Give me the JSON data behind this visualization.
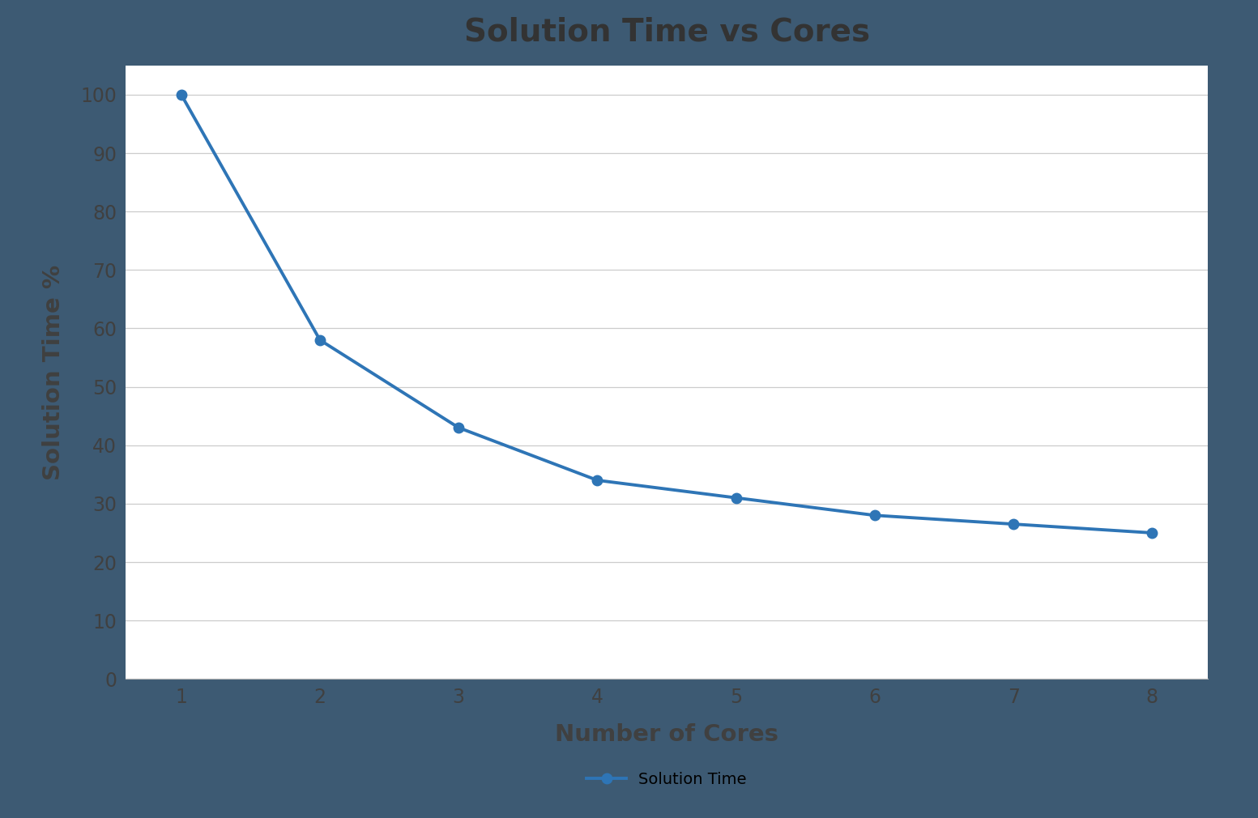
{
  "title": "Solution Time vs Cores",
  "xlabel": "Number of Cores",
  "ylabel": "Solution Time %",
  "x": [
    1,
    2,
    3,
    4,
    5,
    6,
    7,
    8
  ],
  "y": [
    100,
    58.0,
    43.0,
    34.0,
    31.0,
    28.0,
    26.5,
    25.0
  ],
  "line_color": "#2e75b6",
  "marker": "o",
  "marker_size": 9,
  "line_width": 2.8,
  "ylim": [
    0,
    105
  ],
  "yticks": [
    0,
    10,
    20,
    30,
    40,
    50,
    60,
    70,
    80,
    90,
    100
  ],
  "xticks": [
    1,
    2,
    3,
    4,
    5,
    6,
    7,
    8
  ],
  "xlim": [
    0.6,
    8.4
  ],
  "title_fontsize": 28,
  "axis_label_fontsize": 21,
  "tick_fontsize": 17,
  "legend_label": "Solution Time",
  "legend_fontsize": 14,
  "background_color": "#ffffff",
  "border_color": "#3d5a73",
  "grid_color": "#cccccc",
  "grid_linewidth": 0.9,
  "title_color": "#333333",
  "axis_label_color": "#404040",
  "tick_color": "#404040"
}
